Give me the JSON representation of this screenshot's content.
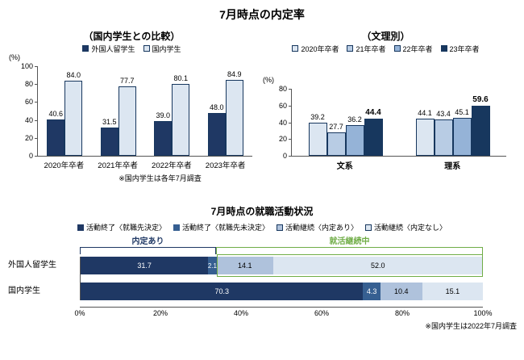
{
  "page_title": "7月時点の内定率",
  "chart_data": [
    {
      "type": "bar",
      "title": "（国内学生との比較）",
      "ylabel": "(%)",
      "ylim": [
        0,
        100
      ],
      "yticks": [
        0,
        20,
        40,
        60,
        80,
        100
      ],
      "categories": [
        "2020年卒者",
        "2021年卒者",
        "2022年卒者",
        "2023年卒者"
      ],
      "series": [
        {
          "name": "外国人留学生",
          "color": "#1F3864",
          "edge": "#17375E",
          "values": [
            "40.6",
            "31.5",
            "39.0",
            "48.0"
          ]
        },
        {
          "name": "国内学生",
          "color": "#DCE6F1",
          "edge": "#17375E",
          "values": [
            "84.0",
            "77.7",
            "80.1",
            "84.9"
          ]
        }
      ],
      "note": "※国内学生は各年7月調査",
      "legend_position": "top"
    },
    {
      "type": "bar",
      "title": "（文理別）",
      "ylabel": "(%)",
      "ylim": [
        0,
        80
      ],
      "yticks": [
        0,
        20,
        40,
        60,
        80
      ],
      "categories": [
        "文系",
        "理系"
      ],
      "series": [
        {
          "name": "2020年卒者",
          "color": "#DCE6F1",
          "edge": "#17375E",
          "values": [
            "39.2",
            "44.1"
          ]
        },
        {
          "name": "21年卒者",
          "color": "#B8CCE4",
          "edge": "#17375E",
          "values": [
            "27.7",
            "43.4"
          ]
        },
        {
          "name": "22年卒者",
          "color": "#95B3D7",
          "edge": "#17375E",
          "values": [
            "36.2",
            "45.1"
          ]
        },
        {
          "name": "23年卒者",
          "color": "#17375E",
          "edge": "#17375E",
          "emphasis": true,
          "values": [
            "44.4",
            "59.6"
          ]
        }
      ],
      "legend_position": "top"
    },
    {
      "type": "stacked-bar-horizontal",
      "title": "7月時点の就職活動状況",
      "categories": [
        "外国人留学生",
        "国内学生"
      ],
      "series": [
        {
          "name": "活動終了〈就職先決定〉",
          "color": "#1F3864",
          "edge": "#1F3864",
          "label_color": "#FFFFFF",
          "values": [
            "31.7",
            "70.3"
          ]
        },
        {
          "name": "活動終了〈就職先未決定〉",
          "color": "#365F91",
          "edge": "#365F91",
          "label_color": "#FFFFFF",
          "values": [
            "2.1",
            "4.3"
          ]
        },
        {
          "name": "活動継続〈内定あり〉",
          "color": "#AFC2DC",
          "edge": "#17375E",
          "label_color": "#000000",
          "values": [
            "14.1",
            "10.4"
          ]
        },
        {
          "name": "活動継続〈内定なし〉",
          "color": "#DCE6F1",
          "edge": "#17375E",
          "label_color": "#000000",
          "values": [
            "52.0",
            "15.1"
          ]
        }
      ],
      "xticks": [
        "0%",
        "20%",
        "40%",
        "60%",
        "80%",
        "100%"
      ],
      "brackets": [
        {
          "label": "内定あり",
          "color": "#1F3864",
          "from": 0,
          "to": 33.8
        },
        {
          "label": "就活継続中",
          "color": "#70AD47",
          "from": 33.8,
          "to": 100
        }
      ],
      "overlay": {
        "row": 0,
        "from": 33.8,
        "to": 100,
        "color": "#70AD47"
      },
      "note": "※国内学生は2022年7月調査"
    }
  ]
}
